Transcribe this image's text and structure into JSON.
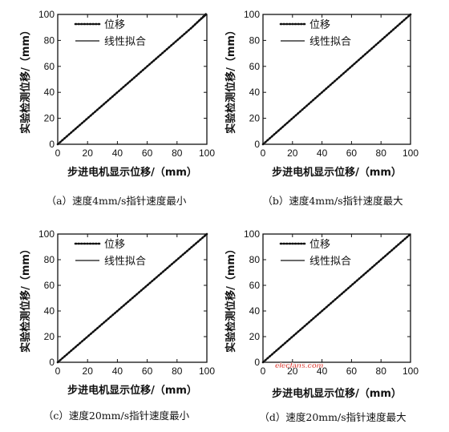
{
  "charts": [
    {
      "xlabel": "步进电机显示位移/（mm）",
      "ylabel": "实验检测位移/（mm）",
      "caption": "（a）速度4mm/s指针速度最小",
      "legend": [
        "位移",
        "线性拟合"
      ]
    },
    {
      "xlabel": "步进电机显示位移/（mm）",
      "ylabel": "实验检测位移/（mm）",
      "caption": "（b）速度4mm/s指针速度最大",
      "legend": [
        "位移",
        "线性拟合"
      ]
    },
    {
      "xlabel": "步进电机显示位移/（mm）",
      "ylabel": "实验检测位移/（mm）",
      "caption": "（c）速度20mm/s指针速度最小",
      "legend": [
        "位移",
        "线性拟合"
      ]
    },
    {
      "xlabel": "步进电机显示位移/（mm）",
      "ylabel": "实验检测位移/（mm）",
      "caption": "（d）速度20mm/s指针速度最大",
      "legend": [
        "位移",
        "线性拟合"
      ]
    }
  ],
  "watermark": "elecfans.com",
  "chart_data": [
    {
      "type": "line",
      "xlim": [
        0,
        100
      ],
      "ylim": [
        0,
        100
      ],
      "xticks": [
        0,
        20,
        40,
        60,
        80,
        100
      ],
      "yticks": [
        0,
        20,
        40,
        60,
        80,
        100
      ],
      "series": [
        {
          "name": "位移",
          "style": "dotted",
          "x": [
            0,
            10,
            20,
            30,
            40,
            50,
            60,
            70,
            80,
            90,
            100
          ],
          "y": [
            0,
            10,
            20,
            30,
            40,
            50,
            60,
            70,
            80,
            90,
            101
          ]
        },
        {
          "name": "线性拟合",
          "style": "solid",
          "x": [
            0,
            100
          ],
          "y": [
            0,
            100
          ]
        }
      ],
      "legend_position": "top-left",
      "grid": false
    },
    {
      "type": "line",
      "xlim": [
        0,
        100
      ],
      "ylim": [
        0,
        100
      ],
      "xticks": [
        0,
        20,
        40,
        60,
        80,
        100
      ],
      "yticks": [
        0,
        20,
        40,
        60,
        80,
        100
      ],
      "series": [
        {
          "name": "位移",
          "style": "dotted",
          "x": [
            0,
            10,
            20,
            30,
            40,
            50,
            60,
            70,
            80,
            90,
            100
          ],
          "y": [
            0,
            10,
            20,
            30,
            40,
            50,
            60,
            70,
            80,
            90,
            100
          ]
        },
        {
          "name": "线性拟合",
          "style": "solid",
          "x": [
            0,
            100
          ],
          "y": [
            0,
            100
          ]
        }
      ],
      "legend_position": "top-left",
      "grid": false
    },
    {
      "type": "line",
      "xlim": [
        0,
        100
      ],
      "ylim": [
        0,
        100
      ],
      "xticks": [
        0,
        20,
        40,
        60,
        80,
        100
      ],
      "yticks": [
        0,
        20,
        40,
        60,
        80,
        100
      ],
      "series": [
        {
          "name": "位移",
          "style": "dotted",
          "x": [
            0,
            10,
            20,
            30,
            40,
            50,
            60,
            70,
            80,
            90,
            100
          ],
          "y": [
            0,
            10,
            20,
            30,
            40,
            50,
            60,
            70,
            80,
            90,
            100
          ]
        },
        {
          "name": "线性拟合",
          "style": "solid",
          "x": [
            0,
            100
          ],
          "y": [
            0,
            100
          ]
        }
      ],
      "legend_position": "top-left",
      "grid": false
    },
    {
      "type": "line",
      "xlim": [
        0,
        100
      ],
      "ylim": [
        0,
        100
      ],
      "xticks": [
        0,
        20,
        40,
        60,
        80,
        100
      ],
      "yticks": [
        0,
        20,
        40,
        60,
        80,
        100
      ],
      "series": [
        {
          "name": "位移",
          "style": "dotted",
          "x": [
            0,
            10,
            20,
            30,
            40,
            50,
            60,
            70,
            80,
            90,
            100
          ],
          "y": [
            0,
            10,
            20,
            30,
            40,
            50,
            60,
            70,
            80,
            90,
            100
          ]
        },
        {
          "name": "线性拟合",
          "style": "solid",
          "x": [
            0,
            100
          ],
          "y": [
            0,
            100
          ]
        }
      ],
      "legend_position": "top-left",
      "grid": false
    }
  ]
}
